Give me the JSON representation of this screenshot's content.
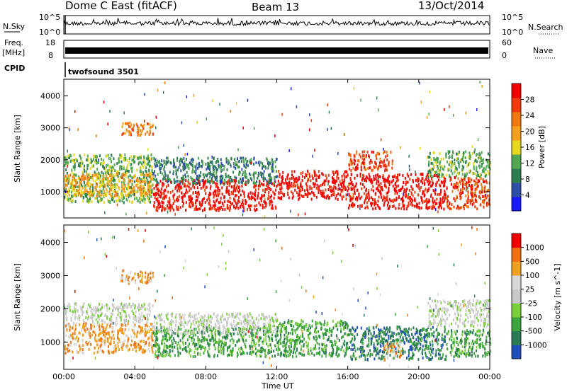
{
  "header": {
    "station": "Dome C East (fitACF)",
    "beam": "Beam 13",
    "date": "13/Oct/2014"
  },
  "top_panels": {
    "nsky_label": "N.Sky",
    "nsky_ticks": [
      "10^5",
      "10^0"
    ],
    "nsearch_label": "N.Search",
    "nsearch_ticks": [
      "10^5",
      "10^0"
    ],
    "freq_label": "Freq.",
    "freq_unit": "[MHz]",
    "freq_ticks": [
      "18",
      "8"
    ],
    "nave_label": "Nave",
    "nave_ticks": [
      "60",
      "0"
    ],
    "cpid_label": "CPID",
    "cpid_text": "twofsound 3501"
  },
  "axes": {
    "ylabel": "Slant Range [km]",
    "yticks": [
      "4000",
      "3000",
      "2000",
      "1000"
    ],
    "xlabel": "Time UT",
    "xticks": [
      "00:00",
      "04:00",
      "08:00",
      "12:00",
      "16:00",
      "20:00",
      "00:00"
    ]
  },
  "colors": {
    "power": [
      "#1a1aff",
      "#2d4fa8",
      "#2e7d4f",
      "#52a852",
      "#e6d81c",
      "#f5a01e",
      "#f07a10",
      "#f23b0c",
      "#f20000"
    ],
    "velocity": [
      "#1f4fb8",
      "#2a7a55",
      "#3da33d",
      "#7ccf3c",
      "#c8c8c8",
      "#d8d8d8",
      "#f0a020",
      "#f07010",
      "#f20000"
    ]
  },
  "chart_data": [
    {
      "type": "heatmap",
      "title": "Power",
      "colorbar_label": "Power [dB]",
      "colorbar_ticks": [
        "28",
        "24",
        "20",
        "16",
        "12",
        "8",
        "4"
      ],
      "x_range": [
        0,
        24
      ],
      "y_range": [
        200,
        4500
      ],
      "regions": [
        {
          "t0": 0.0,
          "t1": 5.0,
          "r0": 700,
          "r1": 2200,
          "level": 3
        },
        {
          "t0": 0.0,
          "t1": 5.0,
          "r0": 900,
          "r1": 1600,
          "level": 5
        },
        {
          "t0": 3.2,
          "t1": 5.0,
          "r0": 2800,
          "r1": 3200,
          "level": 6
        },
        {
          "t0": 5.0,
          "t1": 12.0,
          "r0": 450,
          "r1": 1400,
          "level": 8
        },
        {
          "t0": 5.0,
          "t1": 12.0,
          "r0": 1300,
          "r1": 2100,
          "level": 2
        },
        {
          "t0": 12.0,
          "t1": 16.0,
          "r0": 800,
          "r1": 1700,
          "level": 8
        },
        {
          "t0": 16.0,
          "t1": 21.5,
          "r0": 500,
          "r1": 1600,
          "level": 8
        },
        {
          "t0": 16.0,
          "t1": 18.5,
          "r0": 1700,
          "r1": 2300,
          "level": 7
        },
        {
          "t0": 21.5,
          "t1": 24.0,
          "r0": 500,
          "r1": 1500,
          "level": 7
        },
        {
          "t0": 20.5,
          "t1": 24.0,
          "r0": 1500,
          "r1": 2300,
          "level": 3
        }
      ]
    },
    {
      "type": "heatmap",
      "title": "Velocity",
      "colorbar_label": "Velocity [m s^-1]",
      "colorbar_ticks": [
        "1000",
        "500",
        "100",
        "25",
        "-25",
        "-100",
        "-500",
        "-1000"
      ],
      "x_range": [
        0,
        24
      ],
      "y_range": [
        200,
        4500
      ],
      "regions": [
        {
          "t0": 0.0,
          "t1": 5.0,
          "r0": 1600,
          "r1": 2200,
          "level": 4
        },
        {
          "t0": 0.0,
          "t1": 5.0,
          "r0": 700,
          "r1": 1600,
          "level": 6
        },
        {
          "t0": 3.2,
          "t1": 5.0,
          "r0": 2800,
          "r1": 3200,
          "level": 6
        },
        {
          "t0": 5.0,
          "t1": 12.0,
          "r0": 600,
          "r1": 1500,
          "level": 2
        },
        {
          "t0": 5.0,
          "t1": 12.0,
          "r0": 1300,
          "r1": 1900,
          "level": 4
        },
        {
          "t0": 12.0,
          "t1": 16.0,
          "r0": 600,
          "r1": 1700,
          "level": 2
        },
        {
          "t0": 16.0,
          "t1": 21.5,
          "r0": 500,
          "r1": 1500,
          "level": 1
        },
        {
          "t0": 18.0,
          "t1": 19.0,
          "r0": 500,
          "r1": 1000,
          "level": 6
        },
        {
          "t0": 21.5,
          "t1": 24.0,
          "r0": 600,
          "r1": 1400,
          "level": 2
        },
        {
          "t0": 20.5,
          "t1": 24.0,
          "r0": 1500,
          "r1": 2300,
          "level": 4
        }
      ]
    }
  ]
}
